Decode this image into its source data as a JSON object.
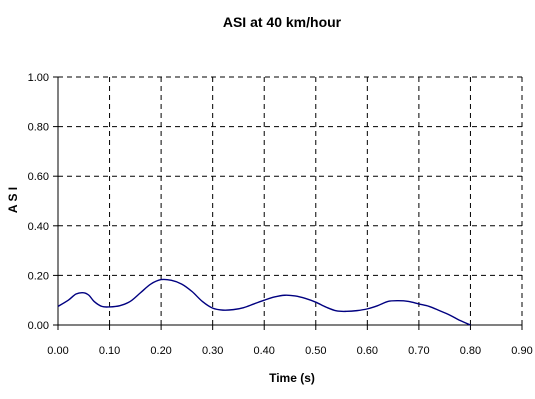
{
  "chart_data": {
    "type": "line",
    "title": "ASI at 40 km/hour",
    "xlabel": "Time (s)",
    "ylabel": "A S I",
    "xlim": [
      0,
      0.9
    ],
    "ylim": [
      0,
      1
    ],
    "xticks": [
      "0.00",
      "0.10",
      "0.20",
      "0.30",
      "0.40",
      "0.50",
      "0.60",
      "0.70",
      "0.80",
      "0.90"
    ],
    "yticks": [
      "0.00",
      "0.20",
      "0.40",
      "0.60",
      "0.80",
      "1.00"
    ],
    "grid": true,
    "grid_style": "dashed",
    "legend": "none",
    "series": [
      {
        "color": "#000080",
        "points": [
          [
            0.0,
            0.075
          ],
          [
            0.02,
            0.1
          ],
          [
            0.035,
            0.125
          ],
          [
            0.05,
            0.13
          ],
          [
            0.06,
            0.12
          ],
          [
            0.07,
            0.095
          ],
          [
            0.085,
            0.075
          ],
          [
            0.1,
            0.073
          ],
          [
            0.12,
            0.078
          ],
          [
            0.14,
            0.095
          ],
          [
            0.16,
            0.13
          ],
          [
            0.18,
            0.165
          ],
          [
            0.2,
            0.183
          ],
          [
            0.22,
            0.18
          ],
          [
            0.24,
            0.165
          ],
          [
            0.26,
            0.135
          ],
          [
            0.28,
            0.095
          ],
          [
            0.3,
            0.068
          ],
          [
            0.32,
            0.06
          ],
          [
            0.34,
            0.062
          ],
          [
            0.36,
            0.07
          ],
          [
            0.38,
            0.085
          ],
          [
            0.4,
            0.1
          ],
          [
            0.42,
            0.113
          ],
          [
            0.44,
            0.12
          ],
          [
            0.46,
            0.117
          ],
          [
            0.48,
            0.107
          ],
          [
            0.5,
            0.092
          ],
          [
            0.52,
            0.072
          ],
          [
            0.54,
            0.057
          ],
          [
            0.56,
            0.055
          ],
          [
            0.58,
            0.058
          ],
          [
            0.6,
            0.065
          ],
          [
            0.62,
            0.078
          ],
          [
            0.64,
            0.095
          ],
          [
            0.66,
            0.098
          ],
          [
            0.68,
            0.095
          ],
          [
            0.7,
            0.085
          ],
          [
            0.72,
            0.075
          ],
          [
            0.74,
            0.058
          ],
          [
            0.76,
            0.04
          ],
          [
            0.78,
            0.018
          ],
          [
            0.8,
            0.0
          ]
        ]
      }
    ]
  }
}
